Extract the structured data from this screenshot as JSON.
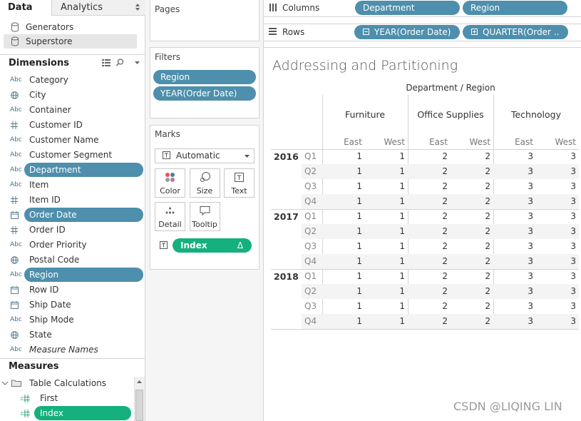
{
  "tabs": [
    "Data",
    "Analytics"
  ],
  "datasources": [
    "Generators",
    "Superstore"
  ],
  "dimensions": {
    "title": "Dimensions",
    "abc_label": "Abc",
    "items": [
      {
        "name": "Category",
        "kind": "abc"
      },
      {
        "name": "City",
        "kind": "geo"
      },
      {
        "name": "Container",
        "kind": "abc"
      },
      {
        "name": "Customer ID",
        "kind": "num"
      },
      {
        "name": "Customer Name",
        "kind": "abc"
      },
      {
        "name": "Customer Segment",
        "kind": "abc"
      },
      {
        "name": "Department",
        "kind": "abc",
        "active": true
      },
      {
        "name": "Item",
        "kind": "abc"
      },
      {
        "name": "Item ID",
        "kind": "num"
      },
      {
        "name": "Order Date",
        "kind": "date",
        "active": true
      },
      {
        "name": "Order ID",
        "kind": "num"
      },
      {
        "name": "Order Priority",
        "kind": "abc"
      },
      {
        "name": "Postal Code",
        "kind": "geo"
      },
      {
        "name": "Region",
        "kind": "abc",
        "active": true
      },
      {
        "name": "Row ID",
        "kind": "date"
      },
      {
        "name": "Ship Date",
        "kind": "date"
      },
      {
        "name": "Ship Mode",
        "kind": "abc"
      },
      {
        "name": "State",
        "kind": "geo"
      },
      {
        "name": "Measure Names",
        "kind": "abc",
        "italic": true
      }
    ]
  },
  "measures": {
    "title": "Measures",
    "folder": "Table Calculations",
    "items": [
      {
        "name": "First",
        "active": false
      },
      {
        "name": "Index",
        "active": true
      }
    ]
  },
  "pages": {
    "title": "Pages"
  },
  "filters": {
    "title": "Filters",
    "pills": [
      "Region",
      "YEAR(Order Date)"
    ]
  },
  "marks": {
    "title": "Marks",
    "type": "Automatic",
    "buttons": [
      "Color",
      "Size",
      "Text",
      "Detail",
      "Tooltip"
    ],
    "pill": "Index",
    "pill_flag": "Δ"
  },
  "columns": {
    "title": "Columns",
    "pills": [
      "Department",
      "Region"
    ]
  },
  "rows": {
    "title": "Rows",
    "pills": [
      {
        "label": "YEAR(Order Date)",
        "expand": "minus"
      },
      {
        "label": "QUARTER(Order ..",
        "expand": "plus"
      }
    ]
  },
  "sheet": {
    "title": "Addressing and Partitioning",
    "header": "Department / Region",
    "departments": [
      {
        "name": "Furniture",
        "regions": [
          "East",
          "West"
        ]
      },
      {
        "name": "Office Supplies",
        "regions": [
          "East",
          "West"
        ]
      },
      {
        "name": "Technology",
        "regions": [
          "East",
          "West"
        ]
      }
    ],
    "years": [
      {
        "year": "2016",
        "quarters": [
          {
            "quarter": "Q1",
            "values": [
              1,
              1,
              2,
              2,
              3,
              3
            ]
          },
          {
            "quarter": "Q2",
            "values": [
              1,
              1,
              2,
              2,
              3,
              3
            ]
          },
          {
            "quarter": "Q3",
            "values": [
              1,
              1,
              2,
              2,
              3,
              3
            ]
          },
          {
            "quarter": "Q4",
            "values": [
              1,
              1,
              2,
              2,
              3,
              3
            ]
          }
        ]
      },
      {
        "year": "2017",
        "quarters": [
          {
            "quarter": "Q1",
            "values": [
              1,
              1,
              2,
              2,
              3,
              3
            ]
          },
          {
            "quarter": "Q2",
            "values": [
              1,
              1,
              2,
              2,
              3,
              3
            ]
          },
          {
            "quarter": "Q3",
            "values": [
              1,
              1,
              2,
              2,
              3,
              3
            ]
          },
          {
            "quarter": "Q4",
            "values": [
              1,
              1,
              2,
              2,
              3,
              3
            ]
          }
        ]
      },
      {
        "year": "2018",
        "quarters": [
          {
            "quarter": "Q1",
            "values": [
              1,
              1,
              2,
              2,
              3,
              3
            ]
          },
          {
            "quarter": "Q2",
            "values": [
              1,
              1,
              2,
              2,
              3,
              3
            ]
          },
          {
            "quarter": "Q3",
            "values": [
              1,
              1,
              2,
              2,
              3,
              3
            ]
          },
          {
            "quarter": "Q4",
            "values": [
              1,
              1,
              2,
              2,
              3,
              3
            ]
          }
        ]
      }
    ]
  },
  "watermark": "CSDN @LIQING LIN"
}
